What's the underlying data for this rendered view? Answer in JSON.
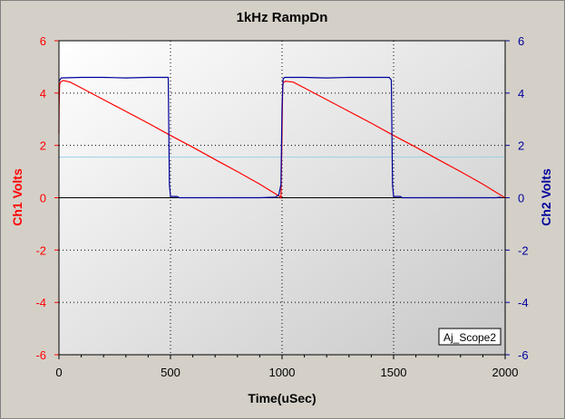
{
  "chart_data": {
    "type": "line",
    "title": "1kHz RampDn",
    "xlabel": "Time(uSec)",
    "ylabel_left": "Ch1 Volts",
    "ylabel_right": "Ch2 Volts",
    "xlim": [
      0,
      2000
    ],
    "ylim_left": [
      -6,
      6
    ],
    "ylim_right": [
      -6,
      6
    ],
    "x_ticks": [
      "0",
      "500",
      "1000",
      "1500",
      "2000"
    ],
    "y_ticks_left": [
      "6",
      "4",
      "2",
      "0",
      "-2",
      "-4",
      "-6"
    ],
    "y_ticks_right": [
      "6",
      "4",
      "2",
      "0",
      "-2",
      "-4",
      "-6"
    ],
    "grid": true,
    "legend_box": "Aj_Scope2",
    "colors": {
      "ch1": "#ff0000",
      "ch2": "#00009c",
      "zero_line": "#000000",
      "level_line": "#9cd0e8"
    },
    "level_line_value": 1.55,
    "series": [
      {
        "name": "Ch1 Volts",
        "axis": "left",
        "x": [
          0,
          1,
          3,
          6,
          20,
          50,
          100,
          200,
          300,
          400,
          500,
          600,
          700,
          800,
          900,
          990,
          995,
          1000,
          1003,
          1006,
          1015,
          1050,
          1100,
          1200,
          1300,
          1400,
          1500,
          1600,
          1700,
          1800,
          1900,
          1990,
          2000
        ],
        "values": [
          2.45,
          3.5,
          4.3,
          4.42,
          4.48,
          4.42,
          4.2,
          3.75,
          3.3,
          2.85,
          2.38,
          1.93,
          1.46,
          1.0,
          0.52,
          0.05,
          0.0,
          2.5,
          4.3,
          4.4,
          4.45,
          4.42,
          4.2,
          3.75,
          3.3,
          2.85,
          2.38,
          1.93,
          1.46,
          1.0,
          0.52,
          0.05,
          0.0
        ]
      },
      {
        "name": "Ch2 Volts",
        "axis": "right",
        "x": [
          0,
          10,
          100,
          200,
          300,
          400,
          480,
          490,
          495,
          500,
          530,
          540,
          840,
          900,
          970,
          985,
          995,
          1000,
          1005,
          1012,
          1100,
          1200,
          1300,
          1400,
          1480,
          1490,
          1495,
          1500,
          1530,
          1540,
          1750,
          1850,
          1960,
          1980
        ],
        "values": [
          4.45,
          4.58,
          4.6,
          4.6,
          4.58,
          4.6,
          4.6,
          4.6,
          0.5,
          0.05,
          0.05,
          0.0,
          0.0,
          0.0,
          0.02,
          0.1,
          0.5,
          3.5,
          4.55,
          4.6,
          4.6,
          4.58,
          4.6,
          4.6,
          4.6,
          4.5,
          0.5,
          0.05,
          0.05,
          0.0,
          0.0,
          0.0,
          0.0,
          0.02
        ]
      }
    ]
  }
}
